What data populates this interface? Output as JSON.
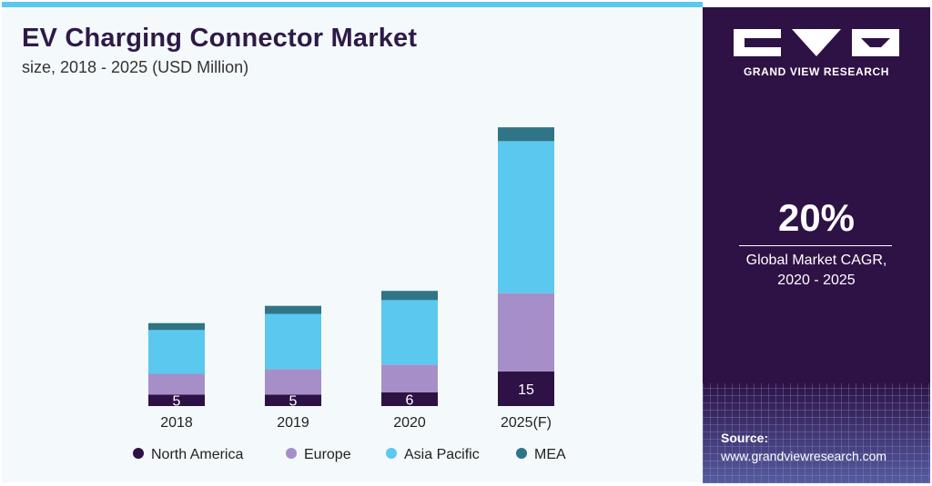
{
  "header": {
    "title": "EV Charging Connector Market",
    "subtitle": "size, 2018 - 2025 (USD Million)"
  },
  "sidebar": {
    "brand": "GRAND VIEW RESEARCH",
    "cagr_value": "20%",
    "cagr_label_line1": "Global Market CAGR,",
    "cagr_label_line2": "2020 - 2025",
    "source_label": "Source:",
    "source_url": "www.grandviewresearch.com"
  },
  "colors": {
    "north_america": "#2e1245",
    "europe": "#a68fc8",
    "asia_pacific": "#5bc8f0",
    "mea": "#2f7585"
  },
  "chart_data": {
    "type": "bar",
    "stacked": true,
    "title": "EV Charging Connector Market",
    "subtitle": "size, 2018 - 2025 (USD Million)",
    "categories": [
      "2018",
      "2019",
      "2020",
      "2025(F)"
    ],
    "series": [
      {
        "name": "North America",
        "values": [
          5,
          5,
          6,
          15
        ],
        "color": "#2e1245"
      },
      {
        "name": "Europe",
        "values": [
          9,
          11,
          12,
          34
        ],
        "color": "#a68fc8"
      },
      {
        "name": "Asia Pacific",
        "values": [
          19,
          24,
          28,
          66
        ],
        "color": "#5bc8f0"
      },
      {
        "name": "MEA",
        "values": [
          3,
          3.5,
          4,
          6
        ],
        "color": "#2f7585"
      }
    ],
    "data_labels": [
      "5",
      "5",
      "6",
      "15"
    ],
    "ylim": [
      0,
      125
    ],
    "legend": "bottom"
  }
}
